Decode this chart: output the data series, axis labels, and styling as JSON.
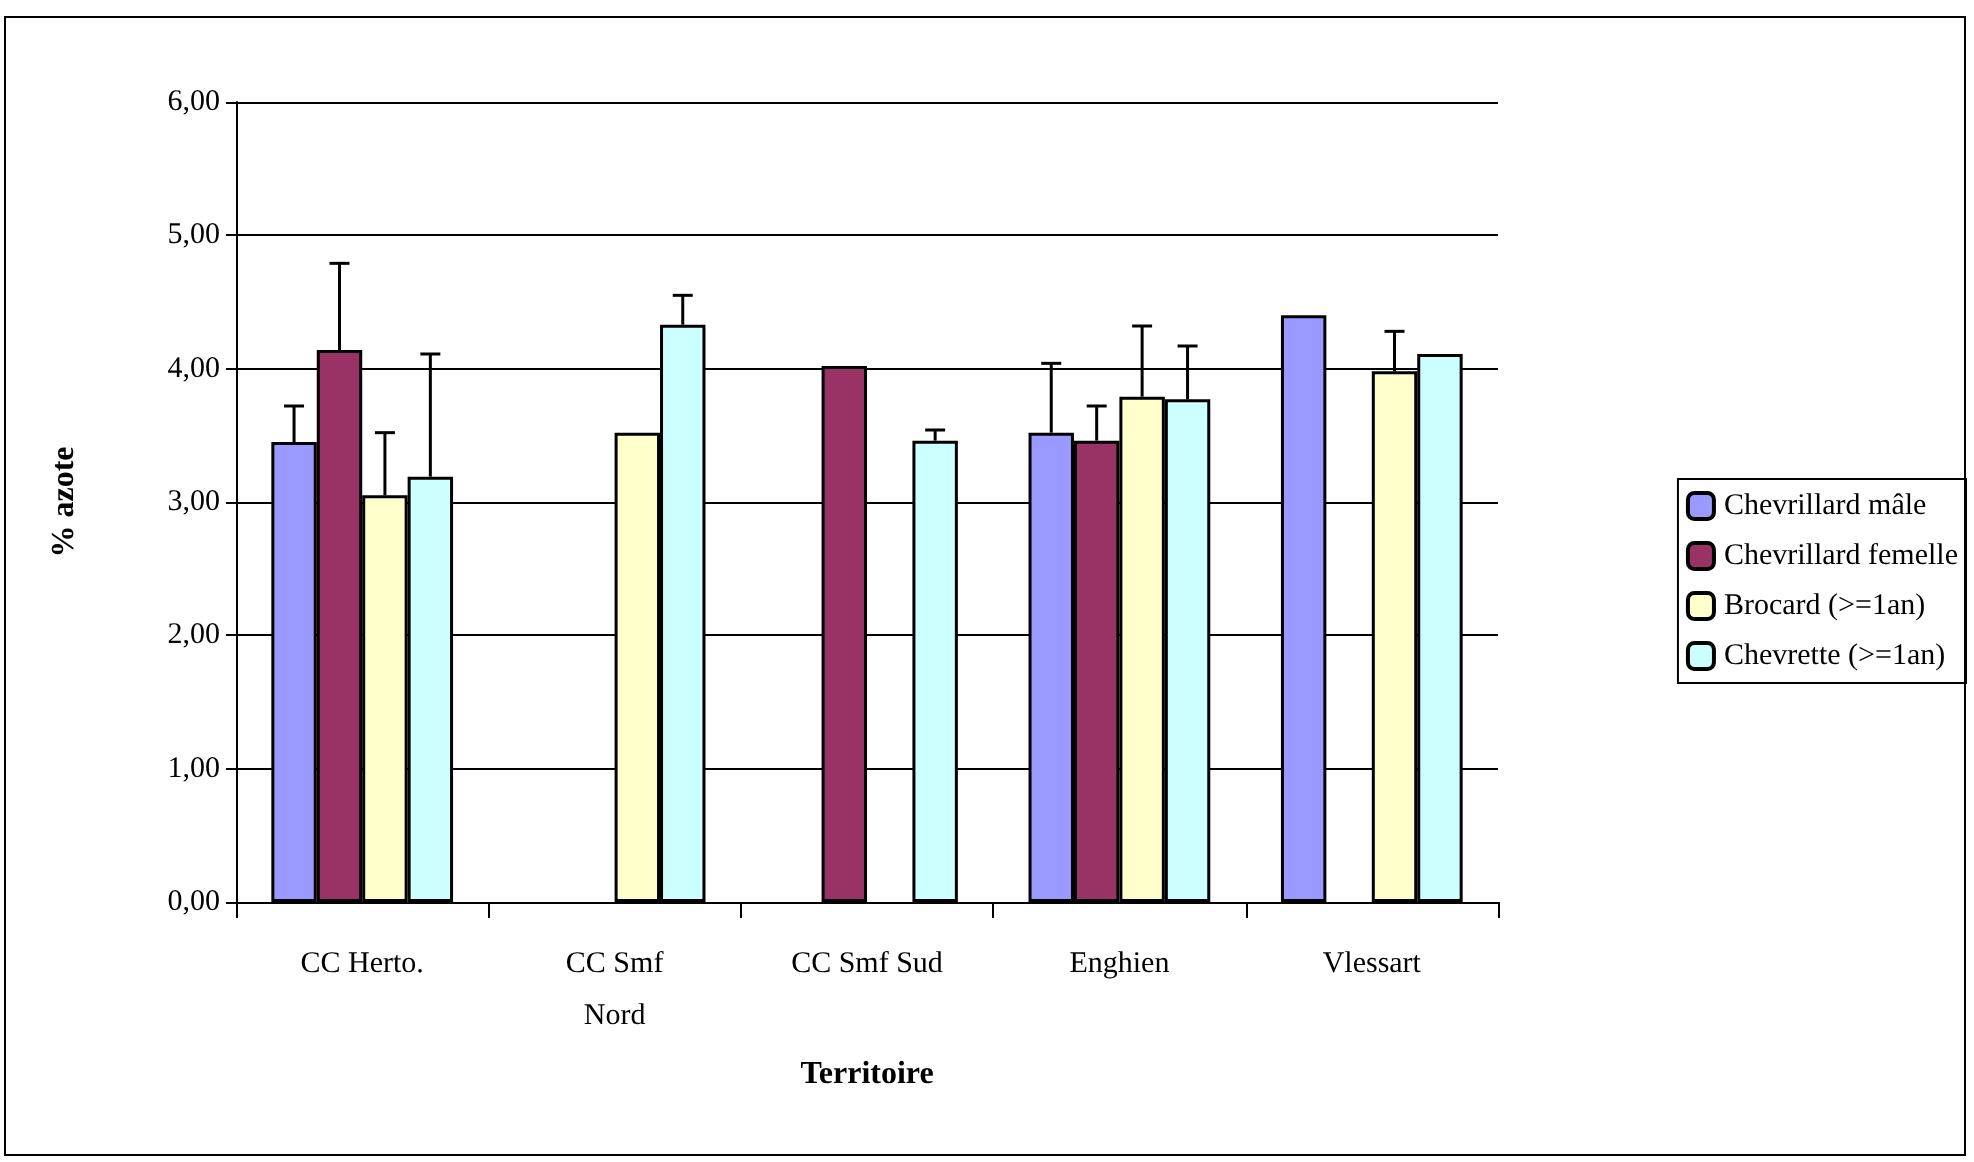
{
  "chart_data": {
    "type": "bar",
    "xlabel": "Territoire",
    "ylabel": "% azote",
    "categories": [
      "CC Herto.",
      "CC Smf\nNord",
      "CC Smf Sud",
      "Enghien",
      "Vlessart"
    ],
    "series": [
      {
        "name": "Chevrillard mâle",
        "color": "#9999ff",
        "values": [
          3.45,
          null,
          null,
          3.52,
          4.4
        ],
        "errors": [
          [
            3.45,
            3.72
          ],
          null,
          null,
          [
            3.52,
            4.04
          ],
          null
        ]
      },
      {
        "name": "Chevrillard femelle",
        "color": "#993366",
        "values": [
          4.14,
          null,
          4.02,
          3.46,
          null
        ],
        "errors": [
          [
            4.14,
            4.79
          ],
          null,
          null,
          [
            3.46,
            3.72
          ],
          null
        ]
      },
      {
        "name": "Brocard (>=1an)",
        "color": "#ffffcc",
        "values": [
          3.05,
          3.52,
          null,
          3.79,
          3.98
        ],
        "errors": [
          [
            3.05,
            3.52
          ],
          null,
          null,
          [
            3.79,
            4.32
          ],
          [
            3.98,
            4.28
          ]
        ]
      },
      {
        "name": "Chevrette (>=1an)",
        "color": "#ccffff",
        "values": [
          3.19,
          4.33,
          3.46,
          3.77,
          4.11
        ],
        "errors": [
          [
            3.19,
            4.11
          ],
          [
            4.33,
            4.55
          ],
          [
            3.46,
            3.54
          ],
          [
            3.77,
            4.17
          ],
          null
        ]
      }
    ],
    "ylim": [
      0,
      6
    ],
    "yticks": [
      {
        "value": 0,
        "label": "0,00"
      },
      {
        "value": 1,
        "label": "1,00"
      },
      {
        "value": 2,
        "label": "2,00"
      },
      {
        "value": 3,
        "label": "3,00"
      },
      {
        "value": 4,
        "label": "4,00"
      },
      {
        "value": 5,
        "label": "5,00"
      },
      {
        "value": 6,
        "label": "6,00"
      }
    ],
    "grid": "y",
    "legend": "right"
  }
}
